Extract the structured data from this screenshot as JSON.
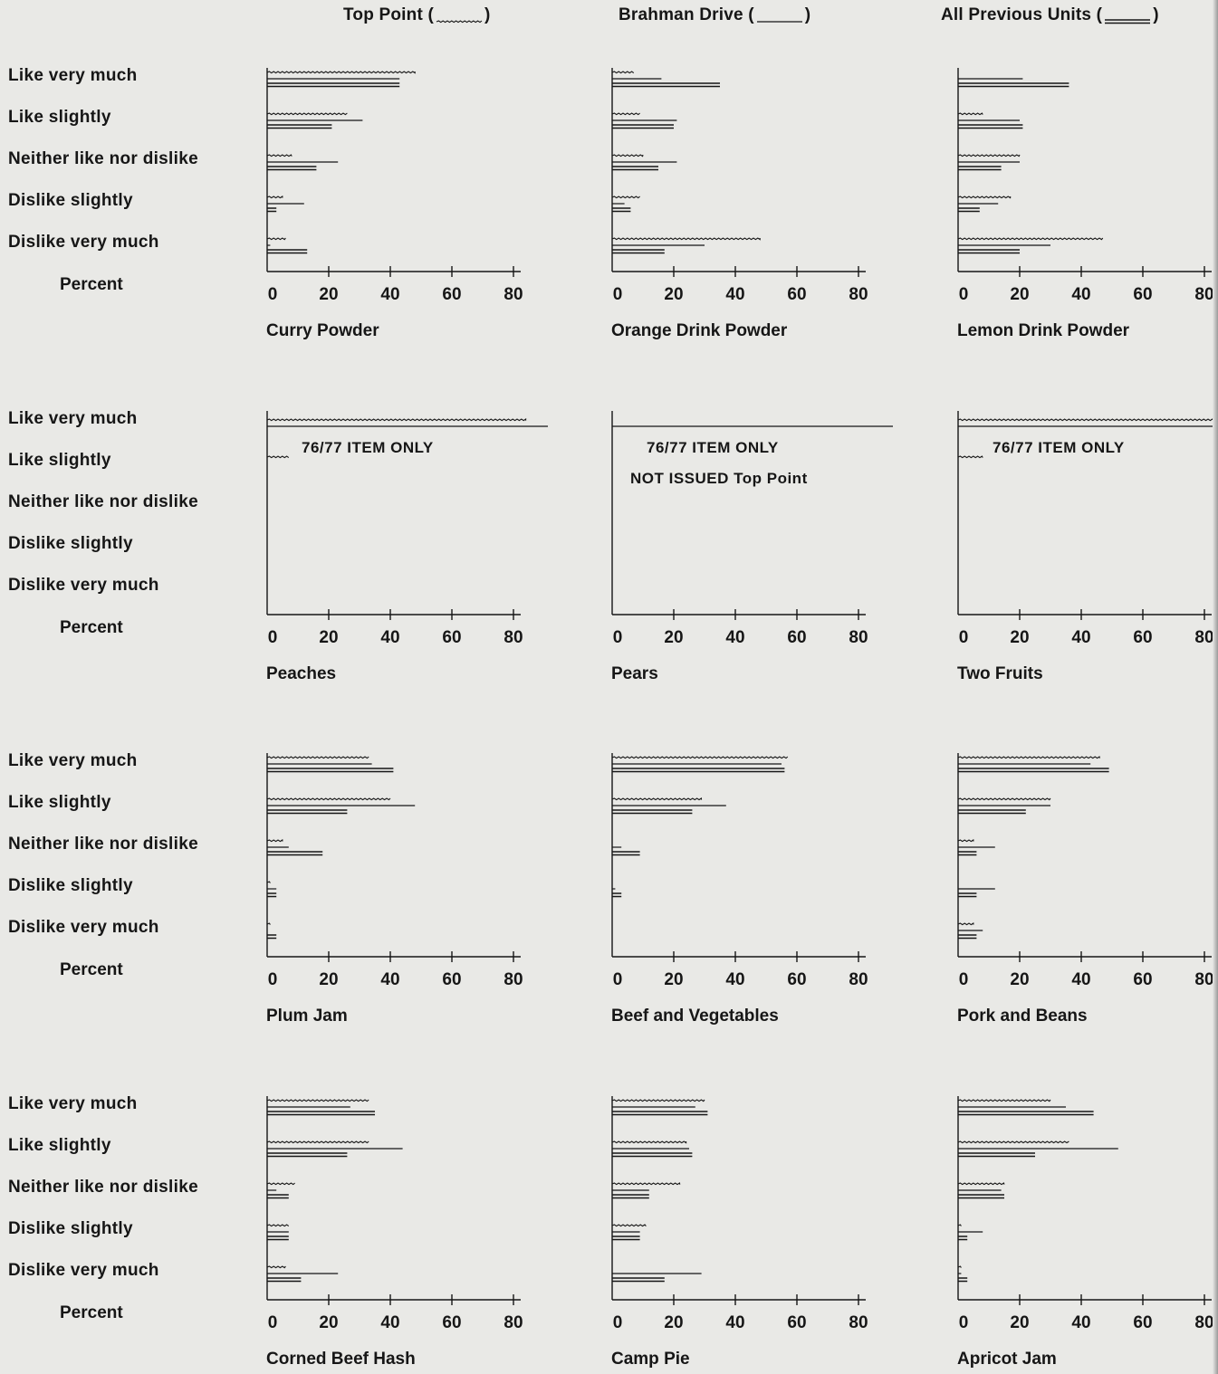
{
  "legend": [
    {
      "label_before": "Top Point (",
      "label_after": ")",
      "style": "tp"
    },
    {
      "label_before": "Brahman Drive (",
      "label_after": ")",
      "style": "bd"
    },
    {
      "label_before": "All Previous Units (",
      "label_after": ")",
      "style": "ap"
    }
  ],
  "category_labels": [
    "Like very much",
    "Like slightly",
    "Neither like nor dislike",
    "Dislike slightly",
    "Dislike very much"
  ],
  "percent_label": "Percent",
  "colors": {
    "ink": "#161616",
    "background": "#e9e9e6"
  },
  "chart_data": [
    {
      "type": "bar",
      "title": "Curry Powder",
      "categories": [
        "Like very much",
        "Like slightly",
        "Neither like nor dislike",
        "Dislike slightly",
        "Dislike very much"
      ],
      "xlabel": "Percent",
      "xlim": [
        0,
        80
      ],
      "xticks": [
        0,
        20,
        40,
        60,
        80
      ],
      "series": [
        {
          "name": "Top Point",
          "values": [
            48,
            26,
            8,
            5,
            6
          ]
        },
        {
          "name": "Brahman Drive",
          "values": [
            43,
            31,
            23,
            12,
            1
          ]
        },
        {
          "name": "All Previous Units",
          "values": [
            43,
            21,
            16,
            3,
            13
          ]
        }
      ]
    },
    {
      "type": "bar",
      "title": "Orange Drink Powder",
      "categories": [
        "Like very much",
        "Like slightly",
        "Neither like nor dislike",
        "Dislike slightly",
        "Dislike very much"
      ],
      "xlabel": "Percent",
      "xlim": [
        0,
        80
      ],
      "xticks": [
        0,
        20,
        40,
        60,
        80
      ],
      "series": [
        {
          "name": "Top Point",
          "values": [
            7,
            9,
            10,
            9,
            48
          ]
        },
        {
          "name": "Brahman Drive",
          "values": [
            16,
            21,
            21,
            4,
            30
          ]
        },
        {
          "name": "All Previous Units",
          "values": [
            35,
            20,
            15,
            6,
            17
          ]
        }
      ]
    },
    {
      "type": "bar",
      "title": "Lemon Drink Powder",
      "categories": [
        "Like very much",
        "Like slightly",
        "Neither like nor dislike",
        "Dislike slightly",
        "Dislike very much"
      ],
      "xlabel": "Percent",
      "xlim": [
        0,
        80
      ],
      "xticks": [
        0,
        20,
        40,
        60,
        80
      ],
      "series": [
        {
          "name": "Top Point",
          "values": [
            0,
            8,
            20,
            17,
            47
          ]
        },
        {
          "name": "Brahman Drive",
          "values": [
            21,
            20,
            20,
            13,
            30
          ]
        },
        {
          "name": "All Previous Units",
          "values": [
            36,
            21,
            14,
            7,
            20
          ]
        }
      ]
    },
    {
      "type": "bar",
      "title": "Peaches",
      "categories": [
        "Like very much",
        "Like slightly",
        "Neither like nor dislike",
        "Dislike slightly",
        "Dislike very much"
      ],
      "xlabel": "Percent",
      "xlim": [
        0,
        80
      ],
      "xticks": [
        0,
        20,
        40,
        60,
        80
      ],
      "series": [
        {
          "name": "Top Point",
          "values": [
            84,
            7,
            0,
            0,
            0
          ]
        }
      ],
      "annotations": [
        "76/77 ITEM ONLY"
      ]
    },
    {
      "type": "bar",
      "title": "Pears",
      "categories": [
        "Like very much",
        "Like slightly",
        "Neither like nor dislike",
        "Dislike slightly",
        "Dislike very much"
      ],
      "xlabel": "Percent",
      "xlim": [
        0,
        80
      ],
      "xticks": [
        0,
        20,
        40,
        60,
        80
      ],
      "series": [],
      "annotations": [
        "76/77 ITEM ONLY",
        "NOT ISSUED Top Point"
      ]
    },
    {
      "type": "bar",
      "title": "Two Fruits",
      "categories": [
        "Like very much",
        "Like slightly",
        "Neither like nor dislike",
        "Dislike slightly",
        "Dislike very much"
      ],
      "xlabel": "Percent",
      "xlim": [
        0,
        80
      ],
      "xticks": [
        0,
        20,
        40,
        60,
        80
      ],
      "series": [
        {
          "name": "Top Point",
          "values": [
            83,
            8,
            0,
            0,
            0
          ]
        }
      ],
      "annotations": [
        "76/77 ITEM ONLY"
      ]
    },
    {
      "type": "bar",
      "title": "Plum Jam",
      "categories": [
        "Like very much",
        "Like slightly",
        "Neither like nor dislike",
        "Dislike slightly",
        "Dislike very much"
      ],
      "xlabel": "Percent",
      "xlim": [
        0,
        80
      ],
      "xticks": [
        0,
        20,
        40,
        60,
        80
      ],
      "series": [
        {
          "name": "Top Point",
          "values": [
            33,
            40,
            5,
            1,
            1
          ]
        },
        {
          "name": "Brahman Drive",
          "values": [
            34,
            48,
            7,
            3,
            0
          ]
        },
        {
          "name": "All Previous Units",
          "values": [
            41,
            26,
            18,
            3,
            3
          ]
        }
      ]
    },
    {
      "type": "bar",
      "title": "Beef and Vegetables",
      "categories": [
        "Like very much",
        "Like slightly",
        "Neither like nor dislike",
        "Dislike slightly",
        "Dislike very much"
      ],
      "xlabel": "Percent",
      "xlim": [
        0,
        80
      ],
      "xticks": [
        0,
        20,
        40,
        60,
        80
      ],
      "series": [
        {
          "name": "Top Point",
          "values": [
            57,
            29,
            0,
            0,
            0
          ]
        },
        {
          "name": "Brahman Drive",
          "values": [
            55,
            37,
            3,
            1,
            0
          ]
        },
        {
          "name": "All Previous Units",
          "values": [
            56,
            26,
            9,
            3,
            0
          ]
        }
      ]
    },
    {
      "type": "bar",
      "title": "Pork and Beans",
      "categories": [
        "Like very much",
        "Like slightly",
        "Neither like nor dislike",
        "Dislike slightly",
        "Dislike very much"
      ],
      "xlabel": "Percent",
      "xlim": [
        0,
        80
      ],
      "xticks": [
        0,
        20,
        40,
        60,
        80
      ],
      "series": [
        {
          "name": "Top Point",
          "values": [
            46,
            30,
            5,
            0,
            5
          ]
        },
        {
          "name": "Brahman Drive",
          "values": [
            43,
            30,
            12,
            12,
            8
          ]
        },
        {
          "name": "All Previous Units",
          "values": [
            49,
            22,
            6,
            6,
            6
          ]
        }
      ]
    },
    {
      "type": "bar",
      "title": "Corned Beef Hash",
      "categories": [
        "Like very much",
        "Like slightly",
        "Neither like nor dislike",
        "Dislike slightly",
        "Dislike very much"
      ],
      "xlabel": "Percent",
      "xlim": [
        0,
        80
      ],
      "xticks": [
        0,
        20,
        40,
        60,
        80
      ],
      "series": [
        {
          "name": "Top Point",
          "values": [
            33,
            33,
            9,
            7,
            6
          ]
        },
        {
          "name": "Brahman Drive",
          "values": [
            27,
            44,
            3,
            7,
            23
          ]
        },
        {
          "name": "All Previous Units",
          "values": [
            35,
            26,
            7,
            7,
            11
          ]
        }
      ]
    },
    {
      "type": "bar",
      "title": "Camp Pie",
      "categories": [
        "Like very much",
        "Like slightly",
        "Neither like nor dislike",
        "Dislike slightly",
        "Dislike very much"
      ],
      "xlabel": "Percent",
      "xlim": [
        0,
        80
      ],
      "xticks": [
        0,
        20,
        40,
        60,
        80
      ],
      "series": [
        {
          "name": "Top Point",
          "values": [
            30,
            24,
            22,
            11,
            0
          ]
        },
        {
          "name": "Brahman Drive",
          "values": [
            27,
            25,
            12,
            9,
            29
          ]
        },
        {
          "name": "All Previous Units",
          "values": [
            31,
            26,
            12,
            9,
            17
          ]
        }
      ]
    },
    {
      "type": "bar",
      "title": "Apricot Jam",
      "categories": [
        "Like very much",
        "Like slightly",
        "Neither like nor dislike",
        "Dislike slightly",
        "Dislike very much"
      ],
      "xlabel": "Percent",
      "xlim": [
        0,
        80
      ],
      "xticks": [
        0,
        20,
        40,
        60,
        80
      ],
      "series": [
        {
          "name": "Top Point",
          "values": [
            30,
            36,
            15,
            1,
            1
          ]
        },
        {
          "name": "Brahman Drive",
          "values": [
            35,
            52,
            14,
            8,
            1
          ]
        },
        {
          "name": "All Previous Units",
          "values": [
            44,
            25,
            15,
            3,
            3
          ]
        }
      ]
    }
  ]
}
